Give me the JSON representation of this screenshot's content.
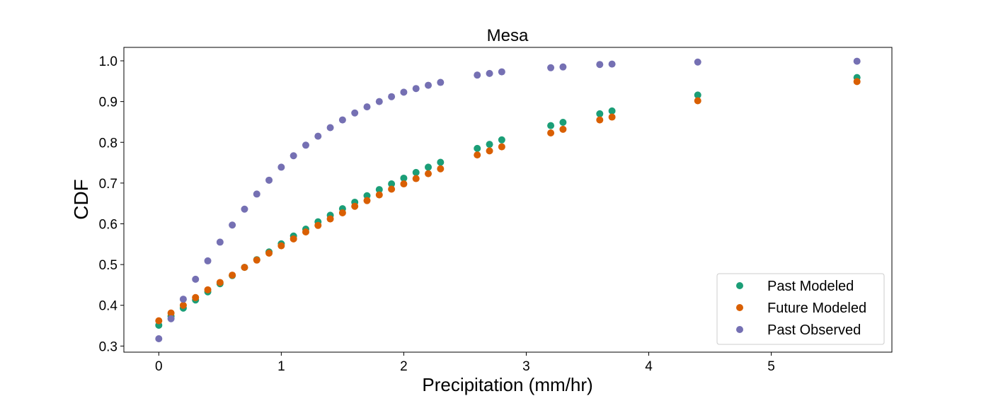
{
  "chart_data": {
    "type": "scatter",
    "title": "Mesa",
    "xlabel": "Precipitation (mm/hr)",
    "ylabel": "CDF",
    "xlim": [
      -0.285,
      5.985
    ],
    "ylim": [
      0.285,
      1.033
    ],
    "xticks": [
      0,
      1,
      2,
      3,
      4,
      5
    ],
    "yticks": [
      0.3,
      0.4,
      0.5,
      0.6,
      0.7,
      0.8,
      0.9,
      1.0
    ],
    "xtick_labels": [
      "0",
      "1",
      "2",
      "3",
      "4",
      "5"
    ],
    "ytick_labels": [
      "0.3",
      "0.4",
      "0.5",
      "0.6",
      "0.7",
      "0.8",
      "0.9",
      "1.0"
    ],
    "grid": false,
    "legend_position": "lower-right",
    "series": [
      {
        "name": "Past Modeled",
        "color": "#1b9e77",
        "x": [
          0,
          0.1,
          0.2,
          0.3,
          0.4,
          0.5,
          0.6,
          0.7,
          0.8,
          0.9,
          1.0,
          1.1,
          1.2,
          1.3,
          1.4,
          1.5,
          1.6,
          1.7,
          1.8,
          1.9,
          2.0,
          2.1,
          2.2,
          2.3,
          2.6,
          2.7,
          2.8,
          3.2,
          3.3,
          3.6,
          3.7,
          4.4,
          5.7
        ],
        "y": [
          0.351,
          0.373,
          0.393,
          0.413,
          0.433,
          0.453,
          0.473,
          0.493,
          0.512,
          0.531,
          0.551,
          0.57,
          0.587,
          0.605,
          0.621,
          0.637,
          0.653,
          0.669,
          0.684,
          0.698,
          0.712,
          0.726,
          0.739,
          0.751,
          0.785,
          0.795,
          0.806,
          0.841,
          0.849,
          0.87,
          0.877,
          0.916,
          0.959
        ]
      },
      {
        "name": "Future Modeled",
        "color": "#d95f02",
        "x": [
          0,
          0.1,
          0.2,
          0.3,
          0.4,
          0.5,
          0.6,
          0.7,
          0.8,
          0.9,
          1.0,
          1.1,
          1.2,
          1.3,
          1.4,
          1.5,
          1.6,
          1.7,
          1.8,
          1.9,
          2.0,
          2.1,
          2.2,
          2.3,
          2.6,
          2.7,
          2.8,
          3.2,
          3.3,
          3.6,
          3.7,
          4.4,
          5.7
        ],
        "y": [
          0.362,
          0.381,
          0.4,
          0.419,
          0.438,
          0.456,
          0.474,
          0.493,
          0.511,
          0.528,
          0.546,
          0.563,
          0.58,
          0.596,
          0.612,
          0.627,
          0.643,
          0.657,
          0.671,
          0.685,
          0.698,
          0.711,
          0.723,
          0.735,
          0.769,
          0.779,
          0.789,
          0.823,
          0.832,
          0.855,
          0.862,
          0.902,
          0.949
        ]
      },
      {
        "name": "Past Observed",
        "color": "#7570b3",
        "x": [
          0,
          0.1,
          0.2,
          0.3,
          0.4,
          0.5,
          0.6,
          0.7,
          0.8,
          0.9,
          1.0,
          1.1,
          1.2,
          1.3,
          1.4,
          1.5,
          1.6,
          1.7,
          1.8,
          1.9,
          2.0,
          2.1,
          2.2,
          2.3,
          2.6,
          2.7,
          2.8,
          3.2,
          3.3,
          3.6,
          3.7,
          4.4,
          5.7
        ],
        "y": [
          0.318,
          0.367,
          0.415,
          0.464,
          0.509,
          0.555,
          0.597,
          0.636,
          0.673,
          0.707,
          0.739,
          0.767,
          0.793,
          0.815,
          0.836,
          0.855,
          0.872,
          0.887,
          0.9,
          0.912,
          0.923,
          0.932,
          0.94,
          0.947,
          0.965,
          0.969,
          0.973,
          0.983,
          0.985,
          0.991,
          0.992,
          0.997,
          0.999
        ]
      }
    ]
  }
}
